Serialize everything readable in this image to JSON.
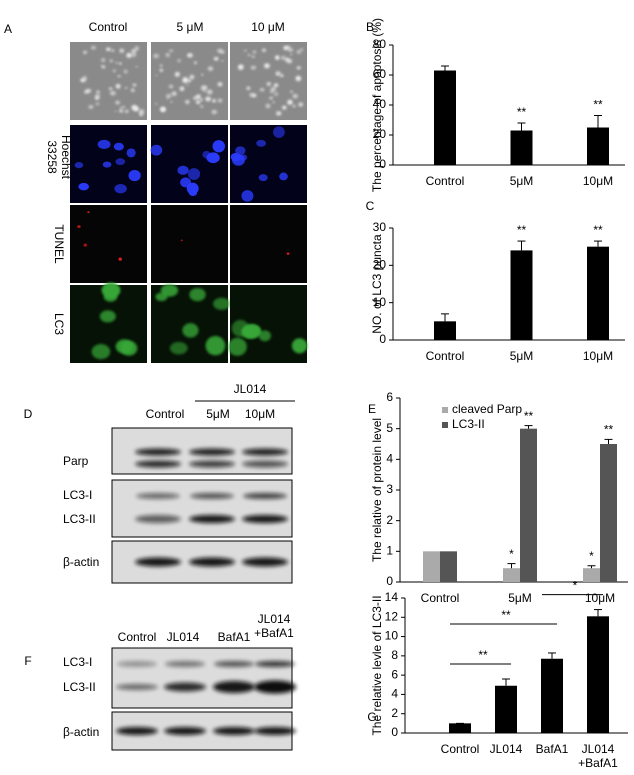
{
  "panels": {
    "A": {
      "label": "A",
      "columns": [
        "Control",
        "5 μM",
        "10 μM"
      ],
      "rows": [
        null,
        "Hoechst\n33258",
        "TUNEL",
        "LC3"
      ]
    },
    "D": {
      "label": "D",
      "group_label": "JL014",
      "columns": [
        "Control",
        "5μM",
        "10μM"
      ],
      "bands": [
        "Parp",
        "LC3-I",
        "LC3-II",
        "β-actin"
      ]
    },
    "F": {
      "label": "F",
      "columns": [
        "Control",
        "JL014",
        "BafA1",
        "JL014\n+BafA1"
      ],
      "bands": [
        "LC3-I",
        "LC3-II",
        "β-actin"
      ]
    }
  },
  "chart_data": [
    {
      "type": "bar",
      "panel_label": "B",
      "y_label": "The percentage of apoptosis (%)",
      "categories": [
        "Control",
        "5μM",
        "10μM"
      ],
      "values": [
        63,
        23,
        25
      ],
      "errors": [
        3,
        5,
        8
      ],
      "color": "#000000",
      "annotations": [
        null,
        "**",
        "**"
      ],
      "ylim": [
        0,
        80
      ],
      "yticks": [
        0,
        20,
        40,
        60,
        80
      ]
    },
    {
      "type": "bar",
      "panel_label": "C",
      "y_label": "NO. of LC3 puncta",
      "categories": [
        "Control",
        "5μM",
        "10μM"
      ],
      "values": [
        5,
        24,
        25
      ],
      "errors": [
        2,
        2.5,
        1.5
      ],
      "color": "#000000",
      "annotations": [
        null,
        "**",
        "**"
      ],
      "ylim": [
        0,
        30
      ],
      "yticks": [
        0,
        10,
        20,
        30
      ]
    },
    {
      "type": "grouped_bar",
      "panel_label": "E",
      "y_label": "The relative of protein level",
      "categories": [
        "Control",
        "5μM",
        "10μM"
      ],
      "legend": "upper-left",
      "series": [
        {
          "name": "cleaved Parp",
          "color": "#aaaaaa",
          "values": [
            1,
            0.45,
            0.45
          ],
          "errors": [
            0,
            0.15,
            0.08
          ],
          "annotations": [
            null,
            "*",
            "*"
          ]
        },
        {
          "name": "LC3-II",
          "color": "#555555",
          "values": [
            1,
            5,
            4.5
          ],
          "errors": [
            0,
            0.1,
            0.15
          ],
          "annotations": [
            null,
            "**",
            "**"
          ]
        }
      ],
      "ylim": [
        0,
        6
      ],
      "yticks": [
        0,
        1,
        2,
        3,
        4,
        5,
        6
      ]
    },
    {
      "type": "bar",
      "panel_label": "G",
      "y_label": "The relative levle of LC3-II",
      "categories": [
        "Control",
        "JL014",
        "BafA1",
        "JL014\n+BafA1"
      ],
      "values": [
        1,
        4.9,
        7.7,
        12.1
      ],
      "errors": [
        0,
        0.7,
        0.6,
        0.7
      ],
      "color": "#000000",
      "comparisons": [
        {
          "between": [
            "Control",
            "JL014"
          ],
          "label": "**"
        },
        {
          "between": [
            "Control",
            "BafA1"
          ],
          "label": "**"
        },
        {
          "between": [
            "BafA1",
            "JL014\n+BafA1"
          ],
          "label": "*"
        }
      ],
      "ylim": [
        0,
        14
      ],
      "yticks": [
        0,
        2,
        4,
        6,
        8,
        10,
        12,
        14
      ]
    }
  ]
}
